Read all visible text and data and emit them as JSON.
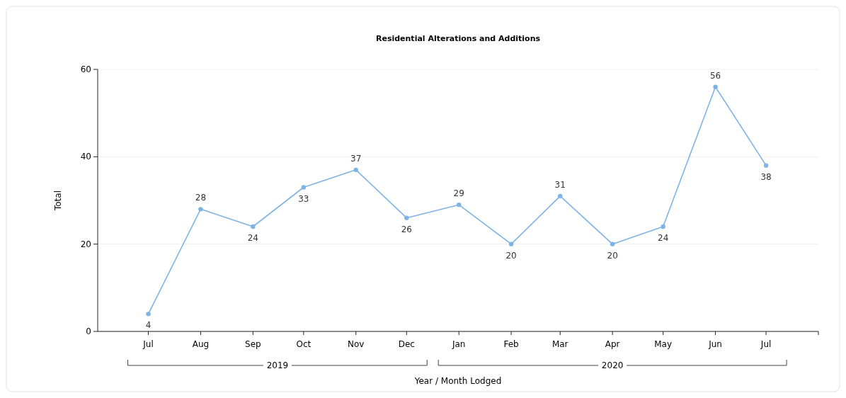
{
  "chart_data": {
    "type": "line",
    "title": "Residential Alterations and Additions",
    "xlabel": "Year / Month Lodged",
    "ylabel": "Total",
    "x": [
      "2019-07",
      "2019-08",
      "2019-09",
      "2019-10",
      "2019-11",
      "2019-12",
      "2020-01",
      "2020-02",
      "2020-03",
      "2020-04",
      "2020-05",
      "2020-06",
      "2020-07"
    ],
    "xlim": [
      "2019-06",
      "2020-08"
    ],
    "xticks": [
      {
        "value": "2019-07",
        "label": "Jul"
      },
      {
        "value": "2019-08",
        "label": "Aug"
      },
      {
        "value": "2019-09",
        "label": "Sep"
      },
      {
        "value": "2019-10",
        "label": "Oct"
      },
      {
        "value": "2019-11",
        "label": "Nov"
      },
      {
        "value": "2019-12",
        "label": "Dec"
      },
      {
        "value": "2020-01",
        "label": "Jan"
      },
      {
        "value": "2020-02",
        "label": "Feb"
      },
      {
        "value": "2020-03",
        "label": "Mar"
      },
      {
        "value": "2020-04",
        "label": "Apr"
      },
      {
        "value": "2020-05",
        "label": "May"
      },
      {
        "value": "2020-06",
        "label": "Jun"
      },
      {
        "value": "2020-07",
        "label": "Jul"
      }
    ],
    "values": [
      4,
      28,
      24,
      33,
      37,
      26,
      29,
      20,
      31,
      20,
      24,
      56,
      38
    ],
    "color": "#7eb3e6",
    "marker": "circle",
    "data_labels": true,
    "grid": "y",
    "ylim": [
      0,
      60
    ],
    "yticks": [
      0,
      20,
      40,
      60
    ],
    "annotations": [
      "2019",
      "2020"
    ]
  }
}
